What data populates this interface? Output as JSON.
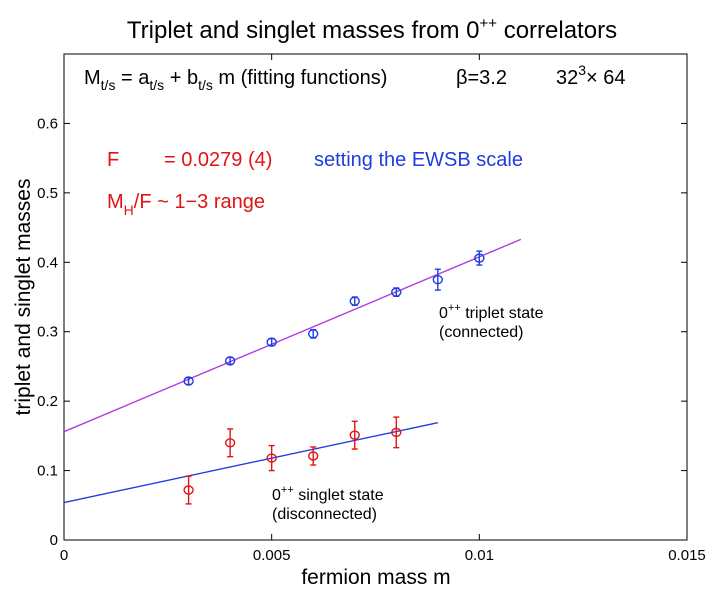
{
  "chart_data": {
    "type": "scatter",
    "title": {
      "main": "Triplet and singlet masses from 0",
      "sup": "++",
      "tail": " correlators"
    },
    "xlabel": "fermion mass m",
    "ylabel": "triplet and singlet masses",
    "xlim": [
      0,
      0.015
    ],
    "ylim": [
      0,
      0.7
    ],
    "xticks": [
      0,
      0.005,
      0.01,
      0.015
    ],
    "xtick_labels": [
      "0",
      "0.005",
      "0.01",
      "0.015"
    ],
    "yticks": [
      0,
      0.1,
      0.2,
      0.3,
      0.4,
      0.5,
      0.6
    ],
    "ytick_labels": [
      "0",
      "0.1",
      "0.2",
      "0.3",
      "0.4",
      "0.5",
      "0.6"
    ],
    "series": [
      {
        "name": "triplet",
        "color": "#1f3de0",
        "x": [
          0.003,
          0.004,
          0.005,
          0.006,
          0.007,
          0.008,
          0.009,
          0.01
        ],
        "y": [
          0.229,
          0.258,
          0.285,
          0.297,
          0.344,
          0.357,
          0.375,
          0.406
        ],
        "err": [
          0.005,
          0.005,
          0.005,
          0.006,
          0.006,
          0.006,
          0.015,
          0.01
        ],
        "fit": {
          "color": "#b23be5",
          "x": [
            0,
            0.011
          ],
          "y": [
            0.156,
            0.433
          ]
        }
      },
      {
        "name": "singlet",
        "color": "#e01414",
        "x": [
          0.003,
          0.004,
          0.005,
          0.006,
          0.007,
          0.008
        ],
        "y": [
          0.072,
          0.14,
          0.118,
          0.121,
          0.151,
          0.155
        ],
        "err": [
          0.02,
          0.02,
          0.018,
          0.013,
          0.02,
          0.022
        ],
        "fit": {
          "color": "#1f3de0",
          "x": [
            0,
            0.009
          ],
          "y": [
            0.054,
            0.169
          ]
        }
      }
    ],
    "annotations": {
      "fit_formula": {
        "M": "M",
        "Msub": "t/s",
        "eq": " = a",
        "asub": "t/s",
        "plus": " + b",
        "bsub": "t/s",
        "tail": " m   (fitting functions)",
        "beta": "β=3.2",
        "lattice_base": "32",
        "lattice_sup": "3",
        "lattice_tail": "× 64"
      },
      "F_label": "F",
      "F_value": "= 0.0279 (4)",
      "ewsb": "setting the EWSB scale",
      "mh_M": "M",
      "mh_sub": "H",
      "mh_tail": "/F ~ 1−3 range",
      "triplet_label": {
        "base": "0",
        "sup": "++",
        "tail": " triplet state",
        "line2": "(connected)"
      },
      "singlet_label": {
        "base": "0",
        "sup": "++",
        "tail": " singlet state",
        "line2": "(disconnected)"
      }
    },
    "colors": {
      "red_text": "#e01414",
      "blue_text": "#1f3de0",
      "axis": "#000000"
    }
  }
}
